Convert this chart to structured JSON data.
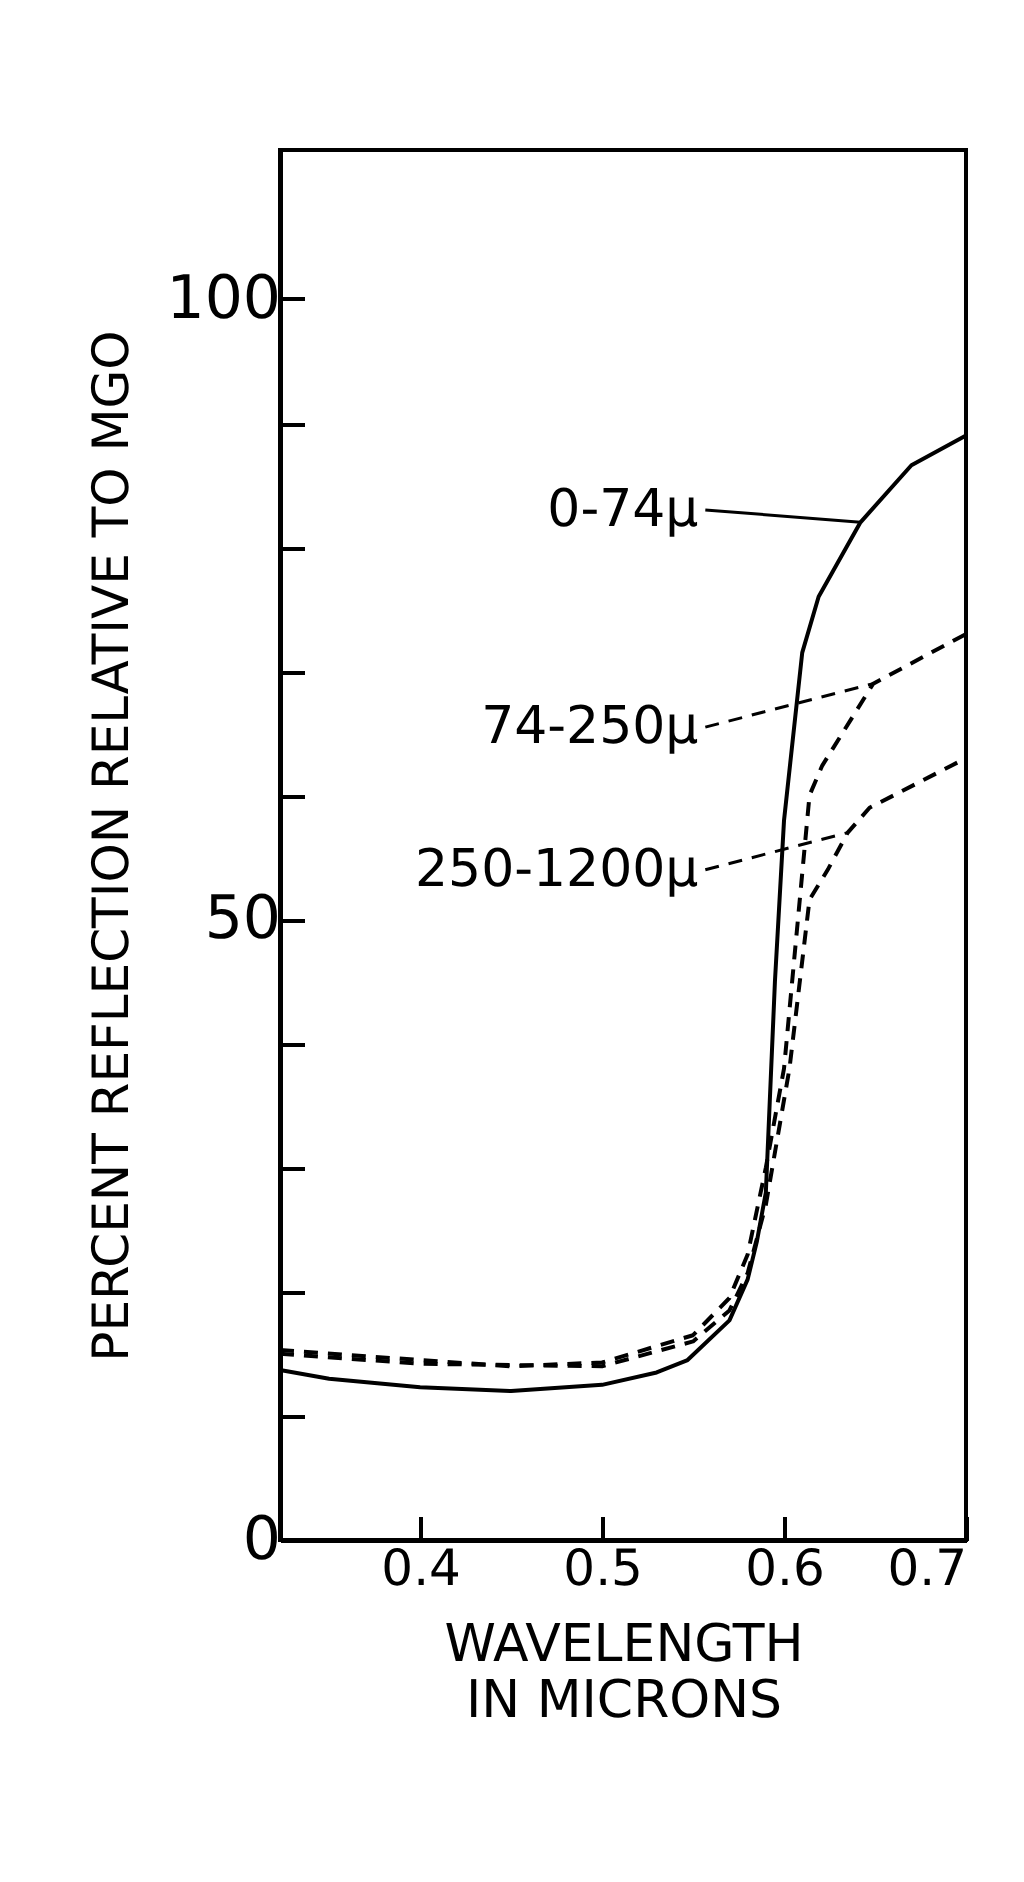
{
  "chart_data": {
    "type": "line",
    "xlabel": "WAVELENGTH\nIN MICRONS",
    "ylabel": "PERCENT REFLECTION RELATIVE TO MGO",
    "xlim": [
      0.323,
      0.7
    ],
    "xticks": [
      0.4,
      0.5,
      0.6,
      0.7
    ],
    "ylim": [
      0,
      112
    ],
    "yticks": [
      0,
      {
        "value": 10,
        "label": null
      },
      {
        "value": 20,
        "label": null
      },
      {
        "value": 30,
        "label": null
      },
      {
        "value": 40,
        "label": null
      },
      50,
      {
        "value": 60,
        "label": null
      },
      {
        "value": 70,
        "label": null
      },
      {
        "value": 80,
        "label": null
      },
      {
        "value": 90,
        "label": null
      },
      100
    ],
    "grid": false,
    "legend": "right",
    "series": [
      {
        "name": "0-74μ",
        "color": "#000000",
        "line_style": "solid",
        "x": [
          0.323,
          0.35,
          0.4,
          0.45,
          0.5,
          0.53,
          0.547,
          0.57,
          0.58,
          0.585,
          0.59,
          0.595,
          0.6,
          0.61,
          0.619,
          0.642,
          0.67,
          0.7
        ],
        "values": [
          13.7,
          13,
          12.3,
          12,
          12.5,
          13.5,
          14.5,
          17.7,
          21,
          24,
          28,
          45,
          58,
          71.5,
          76,
          82,
          86.6,
          89
        ]
      },
      {
        "name": "74-250μ",
        "color": "#000000",
        "line_style": "dashed",
        "x": [
          0.323,
          0.4,
          0.45,
          0.5,
          0.55,
          0.57,
          0.58,
          0.59,
          0.6,
          0.607,
          0.614,
          0.621,
          0.649,
          0.7
        ],
        "values": [
          15.3,
          14.5,
          14,
          14.3,
          16.5,
          19.5,
          23,
          30,
          38,
          49,
          60,
          62.4,
          69,
          73
        ]
      },
      {
        "name": "250-1200μ",
        "color": "#000000",
        "line_style": "dashed",
        "x": [
          0.323,
          0.4,
          0.5,
          0.55,
          0.57,
          0.58,
          0.59,
          0.603,
          0.614,
          0.624,
          0.635,
          0.647,
          0.7
        ],
        "values": [
          15,
          14.2,
          14,
          16,
          18.5,
          21.5,
          27,
          38,
          51.6,
          54,
          57,
          59,
          63
        ]
      }
    ]
  }
}
